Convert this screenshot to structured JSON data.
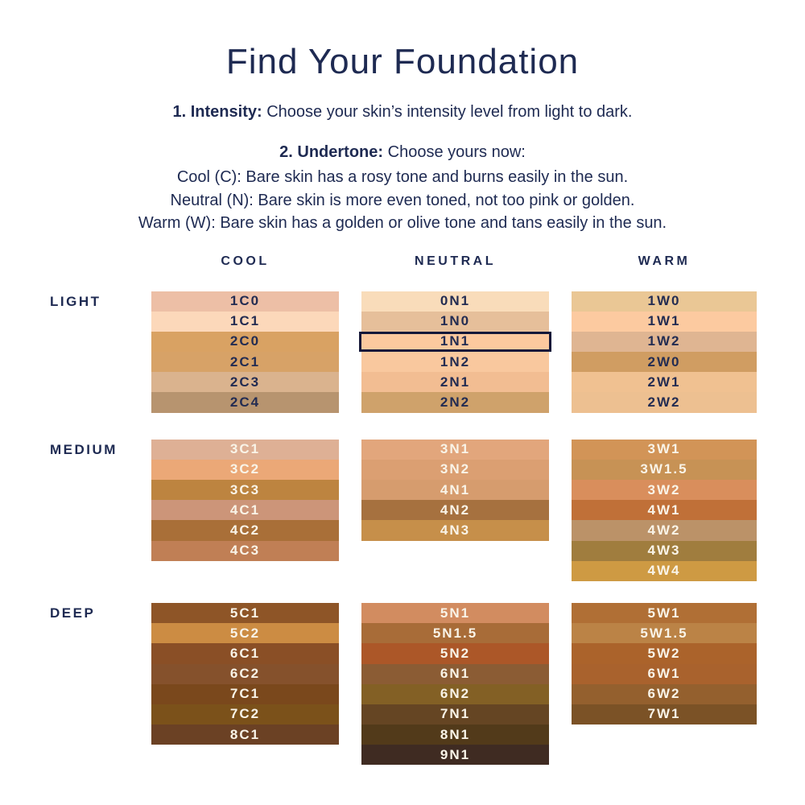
{
  "title": "Find Your Foundation",
  "steps": {
    "step1_label": "1. Intensity:",
    "step1_text": "Choose your skin’s intensity level from light to dark.",
    "step2_label": "2. Undertone:",
    "step2_text": "Choose yours now:",
    "undertone_lines": [
      "Cool (C): Bare skin has a rosy tone and burns easily in the sun.",
      "Neutral (N): Bare skin is more even toned, not too pink or golden.",
      "Warm (W): Bare skin has a golden or olive tone and tans easily in the sun."
    ]
  },
  "columns": [
    "COOL",
    "NEUTRAL",
    "WARM"
  ],
  "selected_shade": "1N1",
  "colors": {
    "navy": "#1e2a52",
    "highlight_border": "#141839",
    "swatch_text_dark": "#232c52",
    "swatch_text_light": "#f9f4e8"
  },
  "groups": [
    {
      "label": "LIGHT",
      "key": "light",
      "swatch_text": "dark",
      "columns": {
        "cool": [
          {
            "code": "1C0",
            "color": "#edbfa6"
          },
          {
            "code": "1C1",
            "color": "#fcd8ba"
          },
          {
            "code": "2C0",
            "color": "#d9a263"
          },
          {
            "code": "2C1",
            "color": "#d7a267"
          },
          {
            "code": "2C3",
            "color": "#dab38e"
          },
          {
            "code": "2C4",
            "color": "#b7946f"
          }
        ],
        "neutral": [
          {
            "code": "0N1",
            "color": "#f9dcba"
          },
          {
            "code": "1N0",
            "color": "#e6bf9a"
          },
          {
            "code": "1N1",
            "color": "#fcc99e",
            "selected": true
          },
          {
            "code": "1N2",
            "color": "#f9c89e"
          },
          {
            "code": "2N1",
            "color": "#f2bd92"
          },
          {
            "code": "2N2",
            "color": "#cfa26b"
          }
        ],
        "warm": [
          {
            "code": "1W0",
            "color": "#eac795"
          },
          {
            "code": "1W1",
            "color": "#fccaa0"
          },
          {
            "code": "1W2",
            "color": "#dfb592"
          },
          {
            "code": "2W0",
            "color": "#d09d62"
          },
          {
            "code": "2W1",
            "color": "#f0c191"
          },
          {
            "code": "2W2",
            "color": "#edc091"
          }
        ]
      }
    },
    {
      "label": "MEDIUM",
      "key": "medium",
      "swatch_text": "light",
      "columns": {
        "cool": [
          {
            "code": "3C1",
            "color": "#deb095"
          },
          {
            "code": "3C2",
            "color": "#eba877"
          },
          {
            "code": "3C3",
            "color": "#bd8440"
          },
          {
            "code": "4C1",
            "color": "#cc9579"
          },
          {
            "code": "4C2",
            "color": "#a96f38"
          },
          {
            "code": "4C3",
            "color": "#c07f55"
          }
        ],
        "neutral": [
          {
            "code": "3N1",
            "color": "#e2a67c"
          },
          {
            "code": "3N2",
            "color": "#db9f72"
          },
          {
            "code": "4N1",
            "color": "#d69c6e"
          },
          {
            "code": "4N2",
            "color": "#a6713f"
          },
          {
            "code": "4N3",
            "color": "#c68f4a"
          }
        ],
        "warm": [
          {
            "code": "3W1",
            "color": "#d29457"
          },
          {
            "code": "3W1.5",
            "color": "#c79255"
          },
          {
            "code": "3W2",
            "color": "#d98e5c"
          },
          {
            "code": "4W1",
            "color": "#c07038"
          },
          {
            "code": "4W2",
            "color": "#bb9268"
          },
          {
            "code": "4W3",
            "color": "#a07d3e"
          },
          {
            "code": "4W4",
            "color": "#ce9a43"
          }
        ]
      }
    },
    {
      "label": "DEEP",
      "key": "deep",
      "swatch_text": "light",
      "columns": {
        "cool": [
          {
            "code": "5C1",
            "color": "#8e5527"
          },
          {
            "code": "5C2",
            "color": "#cc8c43"
          },
          {
            "code": "6C1",
            "color": "#8a4f26"
          },
          {
            "code": "6C2",
            "color": "#85512c"
          },
          {
            "code": "7C1",
            "color": "#7a481c"
          },
          {
            "code": "7C2",
            "color": "#7b511a"
          },
          {
            "code": "8C1",
            "color": "#6b4124"
          }
        ],
        "neutral": [
          {
            "code": "5N1",
            "color": "#d28c60"
          },
          {
            "code": "5N1.5",
            "color": "#a86c38"
          },
          {
            "code": "5N2",
            "color": "#ac5728"
          },
          {
            "code": "6N1",
            "color": "#8b5c34"
          },
          {
            "code": "6N2",
            "color": "#836025"
          },
          {
            "code": "7N1",
            "color": "#654523"
          },
          {
            "code": "8N1",
            "color": "#523a1a"
          },
          {
            "code": "9N1",
            "color": "#3f2b22"
          }
        ],
        "warm": [
          {
            "code": "5W1",
            "color": "#b06f35"
          },
          {
            "code": "5W1.5",
            "color": "#bb8346"
          },
          {
            "code": "5W2",
            "color": "#ab632b"
          },
          {
            "code": "6W1",
            "color": "#a9622d"
          },
          {
            "code": "6W2",
            "color": "#94602e"
          },
          {
            "code": "7W1",
            "color": "#7b5226"
          }
        ]
      }
    }
  ]
}
